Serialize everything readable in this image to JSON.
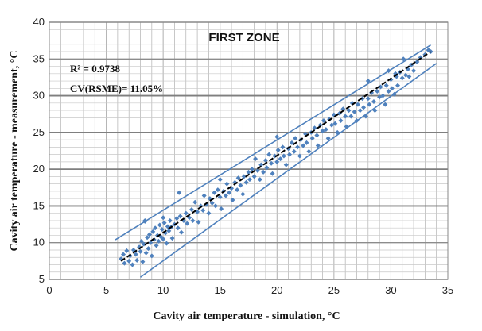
{
  "chart_data": {
    "type": "scatter",
    "title": "FIRST  ZONE",
    "xlabel": "Cavity air temperature - simulation, °C",
    "ylabel": "Cavity air temperature - measurement, °C",
    "xlim": [
      0,
      35
    ],
    "ylim": [
      5,
      40
    ],
    "xticks": [
      0,
      5,
      10,
      15,
      20,
      25,
      30,
      35
    ],
    "yticks": [
      5,
      10,
      15,
      20,
      25,
      30,
      35,
      40
    ],
    "grid": true,
    "annotations": [
      "R² = 0.9738",
      "CV(RSME)= 11.05%"
    ],
    "colors": {
      "points": "#4f81bd",
      "bounds": "#4f81bd",
      "fit": "#000000",
      "grid": "#b0b0b0"
    },
    "fit_line": {
      "x": [
        6.3,
        33.5
      ],
      "y": [
        7.5,
        36.0
      ],
      "style": "dashed"
    },
    "upper_bound": {
      "x": [
        5.8,
        33.5
      ],
      "y": [
        10.4,
        36.9
      ]
    },
    "lower_bound": {
      "x": [
        8.0,
        34.0
      ],
      "y": [
        5.3,
        34.4
      ]
    },
    "series": [
      {
        "points": [
          [
            6.3,
            7.8
          ],
          [
            6.5,
            8.4
          ],
          [
            6.6,
            7.2
          ],
          [
            6.8,
            8.9
          ],
          [
            7.0,
            7.5
          ],
          [
            7.1,
            8.2
          ],
          [
            7.3,
            7.0
          ],
          [
            7.4,
            9.0
          ],
          [
            7.6,
            8.4
          ],
          [
            7.7,
            7.6
          ],
          [
            7.9,
            9.4
          ],
          [
            8.0,
            8.8
          ],
          [
            8.1,
            10.2
          ],
          [
            8.2,
            7.4
          ],
          [
            8.3,
            9.8
          ],
          [
            8.4,
            12.9
          ],
          [
            8.5,
            8.6
          ],
          [
            8.6,
            10.7
          ],
          [
            8.7,
            9.2
          ],
          [
            8.8,
            11.1
          ],
          [
            8.9,
            10.0
          ],
          [
            9.0,
            8.2
          ],
          [
            9.1,
            11.5
          ],
          [
            9.2,
            10.4
          ],
          [
            9.3,
            12.0
          ],
          [
            9.4,
            9.6
          ],
          [
            9.5,
            11.0
          ],
          [
            9.6,
            10.2
          ],
          [
            9.7,
            12.4
          ],
          [
            9.8,
            10.8
          ],
          [
            9.9,
            11.8
          ],
          [
            10.0,
            10.5
          ],
          [
            10.1,
            12.7
          ],
          [
            10.2,
            11.3
          ],
          [
            10.3,
            9.9
          ],
          [
            10.4,
            12.2
          ],
          [
            10.5,
            11.6
          ],
          [
            10.6,
            13.0
          ],
          [
            10.7,
            12.1
          ],
          [
            10.8,
            10.6
          ],
          [
            11.0,
            12.5
          ],
          [
            11.2,
            13.3
          ],
          [
            11.3,
            12.0
          ],
          [
            11.5,
            13.6
          ],
          [
            11.6,
            11.4
          ],
          [
            11.8,
            13.0
          ],
          [
            12.0,
            14.0
          ],
          [
            12.1,
            12.6
          ],
          [
            12.3,
            13.4
          ],
          [
            12.5,
            14.5
          ],
          [
            12.6,
            13.0
          ],
          [
            12.8,
            15.5
          ],
          [
            13.0,
            14.2
          ],
          [
            13.1,
            12.8
          ],
          [
            13.3,
            15.0
          ],
          [
            13.5,
            14.4
          ],
          [
            13.6,
            16.4
          ],
          [
            13.8,
            15.2
          ],
          [
            14.0,
            14.0
          ],
          [
            14.1,
            16.0
          ],
          [
            14.3,
            15.4
          ],
          [
            14.5,
            16.8
          ],
          [
            14.6,
            15.0
          ],
          [
            14.8,
            17.2
          ],
          [
            15.0,
            16.2
          ],
          [
            15.1,
            14.6
          ],
          [
            15.3,
            17.0
          ],
          [
            15.5,
            16.4
          ],
          [
            15.6,
            18.0
          ],
          [
            15.8,
            16.8
          ],
          [
            16.0,
            17.4
          ],
          [
            16.1,
            15.8
          ],
          [
            16.3,
            18.2
          ],
          [
            16.5,
            17.2
          ],
          [
            16.6,
            18.8
          ],
          [
            16.8,
            17.8
          ],
          [
            17.0,
            16.6
          ],
          [
            17.1,
            19.0
          ],
          [
            17.3,
            18.2
          ],
          [
            17.5,
            19.6
          ],
          [
            17.6,
            18.6
          ],
          [
            17.8,
            20.0
          ],
          [
            18.0,
            19.0
          ],
          [
            18.1,
            21.4
          ],
          [
            18.3,
            19.8
          ],
          [
            18.5,
            18.6
          ],
          [
            18.6,
            20.6
          ],
          [
            18.8,
            19.6
          ],
          [
            19.0,
            21.2
          ],
          [
            19.1,
            20.2
          ],
          [
            19.3,
            22.0
          ],
          [
            19.5,
            20.8
          ],
          [
            19.6,
            19.4
          ],
          [
            19.8,
            21.8
          ],
          [
            20.0,
            21.0
          ],
          [
            20.1,
            22.6
          ],
          [
            20.3,
            21.4
          ],
          [
            20.5,
            23.0
          ],
          [
            20.6,
            21.8
          ],
          [
            20.8,
            20.6
          ],
          [
            21.0,
            22.8
          ],
          [
            21.1,
            22.0
          ],
          [
            21.3,
            23.6
          ],
          [
            21.5,
            22.4
          ],
          [
            21.6,
            24.2
          ],
          [
            21.8,
            23.0
          ],
          [
            22.0,
            21.8
          ],
          [
            22.1,
            24.0
          ],
          [
            22.3,
            23.2
          ],
          [
            22.5,
            24.8
          ],
          [
            22.6,
            23.6
          ],
          [
            22.8,
            22.4
          ],
          [
            23.0,
            25.0
          ],
          [
            23.1,
            24.2
          ],
          [
            23.3,
            25.6
          ],
          [
            23.5,
            24.6
          ],
          [
            23.6,
            23.2
          ],
          [
            23.8,
            26.0
          ],
          [
            24.0,
            25.2
          ],
          [
            24.1,
            26.6
          ],
          [
            24.3,
            25.4
          ],
          [
            24.5,
            24.2
          ],
          [
            24.6,
            26.8
          ],
          [
            24.8,
            26.0
          ],
          [
            25.0,
            27.4
          ],
          [
            25.1,
            26.2
          ],
          [
            25.3,
            25.0
          ],
          [
            25.5,
            27.6
          ],
          [
            25.6,
            26.6
          ],
          [
            25.8,
            28.2
          ],
          [
            26.0,
            27.2
          ],
          [
            26.1,
            25.8
          ],
          [
            26.3,
            28.0
          ],
          [
            26.5,
            27.2
          ],
          [
            26.6,
            29.0
          ],
          [
            26.8,
            27.8
          ],
          [
            27.0,
            26.6
          ],
          [
            27.1,
            28.8
          ],
          [
            27.3,
            28.0
          ],
          [
            27.5,
            29.6
          ],
          [
            27.6,
            28.4
          ],
          [
            27.8,
            27.2
          ],
          [
            28.0,
            29.6
          ],
          [
            28.1,
            28.8
          ],
          [
            28.3,
            30.4
          ],
          [
            28.5,
            29.2
          ],
          [
            28.6,
            28.0
          ],
          [
            28.8,
            30.6
          ],
          [
            29.0,
            29.8
          ],
          [
            29.1,
            31.2
          ],
          [
            29.3,
            30.0
          ],
          [
            29.5,
            28.8
          ],
          [
            29.6,
            31.4
          ],
          [
            29.8,
            30.6
          ],
          [
            30.0,
            32.2
          ],
          [
            30.1,
            31.0
          ],
          [
            30.3,
            30.2
          ],
          [
            30.5,
            32.6
          ],
          [
            30.6,
            31.4
          ],
          [
            30.8,
            33.2
          ],
          [
            31.0,
            32.4
          ],
          [
            31.1,
            35.0
          ],
          [
            31.3,
            32.8
          ],
          [
            31.5,
            33.6
          ],
          [
            31.6,
            32.6
          ],
          [
            31.8,
            34.2
          ],
          [
            32.0,
            33.4
          ],
          [
            32.3,
            34.6
          ],
          [
            32.6,
            35.2
          ],
          [
            33.0,
            35.6
          ],
          [
            33.3,
            36.2
          ],
          [
            33.5,
            36.0
          ],
          [
            29.8,
            33.4
          ],
          [
            30.4,
            33.0
          ],
          [
            28.0,
            32.0
          ],
          [
            20.0,
            24.4
          ],
          [
            15.0,
            18.6
          ],
          [
            11.4,
            16.8
          ],
          [
            10.0,
            13.4
          ],
          [
            8.4,
            13.0
          ]
        ]
      }
    ]
  }
}
